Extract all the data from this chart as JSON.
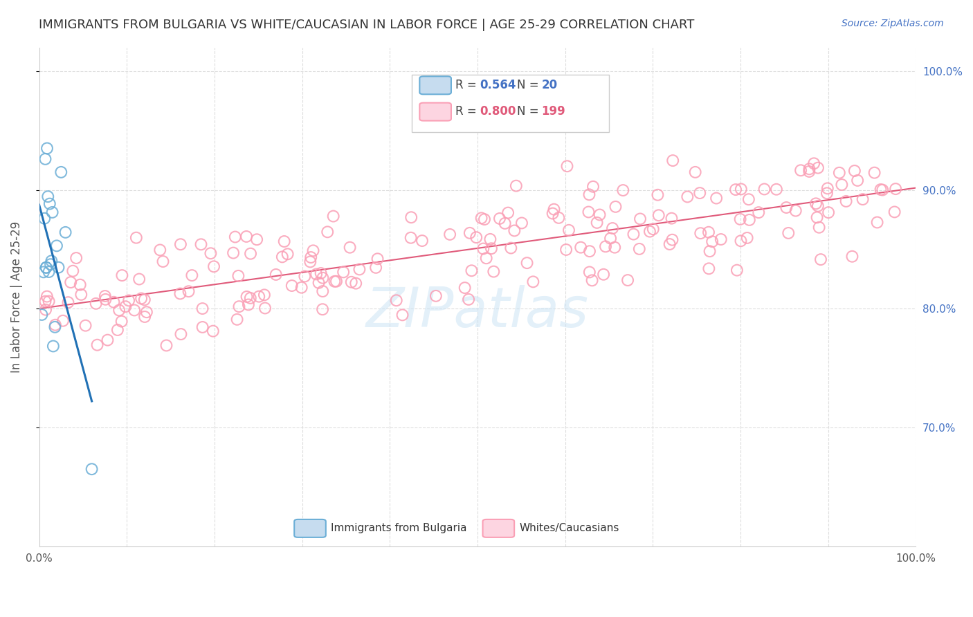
{
  "title": "IMMIGRANTS FROM BULGARIA VS WHITE/CAUCASIAN IN LABOR FORCE | AGE 25-29 CORRELATION CHART",
  "source": "Source: ZipAtlas.com",
  "ylabel": "In Labor Force | Age 25-29",
  "legend_blue_R": "0.564",
  "legend_blue_N": "20",
  "legend_pink_R": "0.800",
  "legend_pink_N": "199",
  "blue_color": "#6baed6",
  "pink_color": "#fa9fb5",
  "blue_line_color": "#2171b5",
  "pink_line_color": "#e05a7a",
  "watermark": "ZIPatlas",
  "grid_color": "#dddddd",
  "bg_color": "#ffffff"
}
